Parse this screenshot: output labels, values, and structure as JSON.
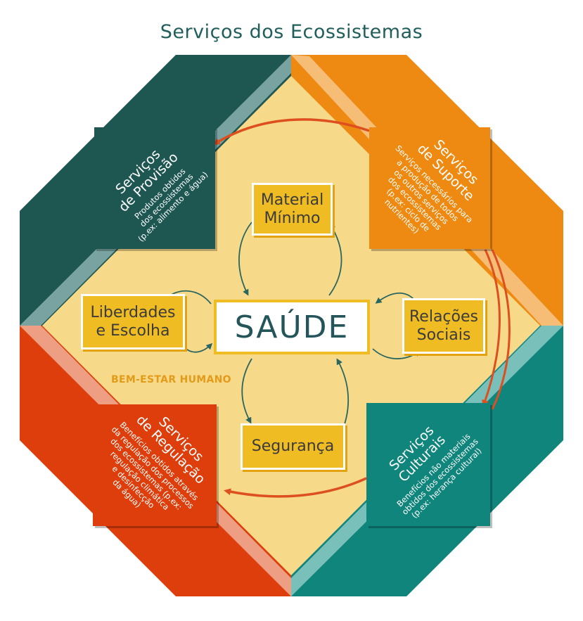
{
  "title": "Serviços dos Ecossistemas",
  "center": "SAÚDE",
  "wellbeing_label": "BEM-ESTAR HUMANO",
  "human_needs": {
    "material": [
      "Material",
      "Mínimo"
    ],
    "liberdades": [
      "Liberdades",
      "e Escolha"
    ],
    "relacoes": [
      "Relações",
      "Sociais"
    ],
    "seguranca": [
      "Segurança"
    ]
  },
  "services": {
    "provisao": {
      "title": [
        "Serviços",
        "de Provisão"
      ],
      "desc": [
        "Produtos obtidos",
        "dos ecossistemas",
        "(p.ex: alimento e água)"
      ],
      "color": "#1e5752"
    },
    "suporte": {
      "title": [
        "Serviços",
        "de Suporte"
      ],
      "desc": [
        "Serviços necessários para",
        "a produção de todos",
        "os outros serviços",
        "dos ecossistemas",
        "(p.ex: ciclo de",
        "nutrientes)"
      ],
      "color": "#ee8a12"
    },
    "regulacao": {
      "title": [
        "Serviços",
        "de Regulação"
      ],
      "desc": [
        "Benefícios obtidos através",
        "da regulação dos processos",
        "dos ecossistemas (p.ex:",
        "regulação climática",
        "e desinfecção",
        "da água)"
      ],
      "color": "#dd3e0b"
    },
    "culturais": {
      "title": [
        "Serviços",
        "Culturais"
      ],
      "desc": [
        "Benefícios não materiais",
        "obtidos dos ecossistemas",
        "(p.ex: herança cultural)"
      ],
      "color": "#10857c"
    }
  },
  "colors": {
    "core": "#f7d98a",
    "dark_green": "#1e5752",
    "orange": "#ee8a12",
    "red": "#dd3e0b",
    "teal": "#10857c",
    "yellow": "#f0bc23"
  }
}
